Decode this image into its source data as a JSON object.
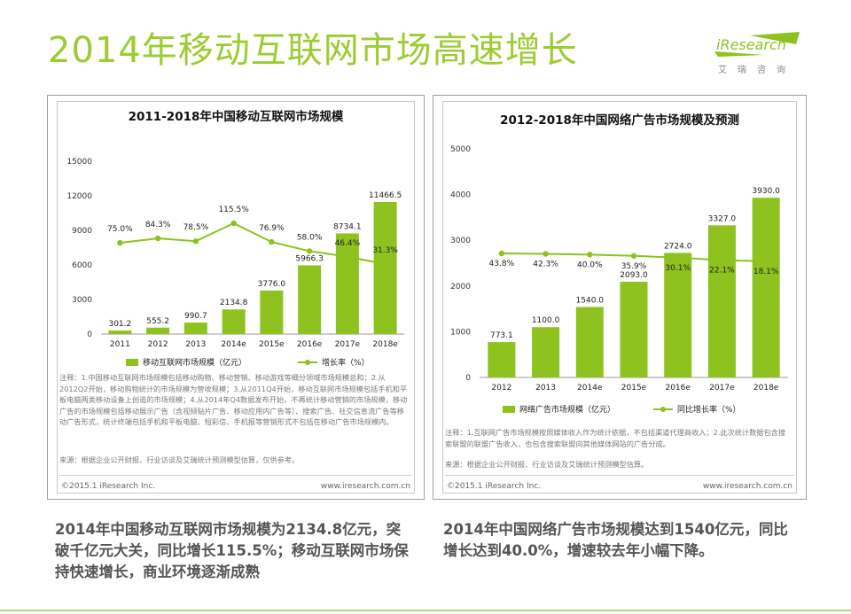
{
  "page": {
    "title": "2014年移动互联网市场高速增长",
    "logo": {
      "brand": "iResearch",
      "cn": "艾瑞咨询",
      "color": "#8dc21f"
    },
    "accent_color": "#9acd32",
    "bar_color": "#8dc21f",
    "line_color": "#8dc21f"
  },
  "chart_data": [
    {
      "type": "bar",
      "title": "2011-2018年中国移动互联网市场规模",
      "categories": [
        "2011",
        "2012",
        "2013",
        "2014e",
        "2015e",
        "2016e",
        "2017e",
        "2018e"
      ],
      "series": [
        {
          "name": "移动互联网市场规模（亿元）",
          "type": "bar",
          "values": [
            301.2,
            555.2,
            990.7,
            2134.8,
            3776.0,
            5966.3,
            8734.1,
            11466.5
          ]
        },
        {
          "name": "增长率（%）",
          "type": "line",
          "values": [
            75.0,
            84.3,
            78.5,
            115.5,
            76.9,
            58.0,
            46.4,
            31.3
          ]
        }
      ],
      "bar_labels": [
        "301.2",
        "555.2",
        "990.7",
        "2134.8",
        "3776.0",
        "5966.3",
        "8734.1",
        "11466.5"
      ],
      "line_labels": [
        "75.0%",
        "84.3%",
        "78.5%",
        "115.5%",
        "76.9%",
        "58.0%",
        "46.4%",
        "31.3%"
      ],
      "yticks": [
        "15000",
        "12000",
        "9000",
        "6000",
        "3000",
        "0"
      ],
      "ylim": [
        0,
        15000
      ],
      "legend": [
        "移动互联网市场规模（亿元）",
        "增长率（%）"
      ],
      "legend_position": "bottom",
      "note": "注释：1.中国移动互联网市场规模包括移动购物、移动营销、移动游戏等细分领域市场规模总和；2.从2012Q2开始，移动购物统计的市场规模为营收规模；3.从2011Q4开始，移动互联网市场规模包括手机和平板电脑两类移动设备上创造的市场规模；4.从2014年Q4数据发布开始，不再统计移动营销的市场规模，移动广告的市场规模包括移动展示广告（含视频贴片广告、移动应用内广告等）、搜索广告、社交信息流广告等移动广告形式，统计终端包括手机和平板电脑、短彩信、手机报等营销形式不包括在移动广告市场规模内。",
      "source": "来源：根据企业公开财报、行业访谈及艾瑞统计预测模型估算，仅供参考。",
      "copyright": "©2015.1 iResearch Inc.",
      "url": "www.iresearch.com.cn"
    },
    {
      "type": "bar",
      "title": "2012-2018年中国网络广告市场规模及预测",
      "categories": [
        "2012",
        "2013",
        "2014e",
        "2015e",
        "2016e",
        "2017e",
        "2018e"
      ],
      "series": [
        {
          "name": "网络广告市场规模（亿元）",
          "type": "bar",
          "values": [
            773.1,
            1100.0,
            1540.0,
            2093.0,
            2724.0,
            3327.0,
            3930.0
          ]
        },
        {
          "name": "同比增长率（%）",
          "type": "line",
          "values": [
            43.8,
            42.3,
            40.0,
            35.9,
            30.1,
            22.1,
            18.1
          ]
        }
      ],
      "bar_labels": [
        "773.1",
        "1100.0",
        "1540.0",
        "2093.0",
        "2724.0",
        "3327.0",
        "3930.0"
      ],
      "line_labels": [
        "43.8%",
        "42.3%",
        "40.0%",
        "35.9%",
        "30.1%",
        "22.1%",
        "18.1%"
      ],
      "yticks": [
        "5000",
        "4000",
        "3000",
        "2000",
        "1000",
        "0"
      ],
      "ylim": [
        0,
        5000
      ],
      "legend": [
        "网络广告市场规模（亿元）",
        "同比增长率（%）"
      ],
      "legend_position": "bottom",
      "note": "注释：1.互联网广告市场规模按照媒体收入作为统计依据，不包括渠道代理商收入；2.此次统计数据包含搜索联盟的联盟广告收入，也包含搜索联盟向其他媒体网站的广告分成。",
      "source": "来源：根据企业公开财报、行业访谈及艾瑞统计预测模型估算。",
      "copyright": "©2015.1 iResearch Inc.",
      "url": "www.iresearch.com.cn"
    }
  ],
  "captions": [
    "2014年中国移动互联网市场规模为2134.8亿元，突破千亿元大关，同比增长115.5%；移动互联网市场保持快速增长，商业环境逐渐成熟",
    "2014年中国网络广告市场规模达到1540亿元，同比增长达到40.0%，增速较去年小幅下降。"
  ]
}
